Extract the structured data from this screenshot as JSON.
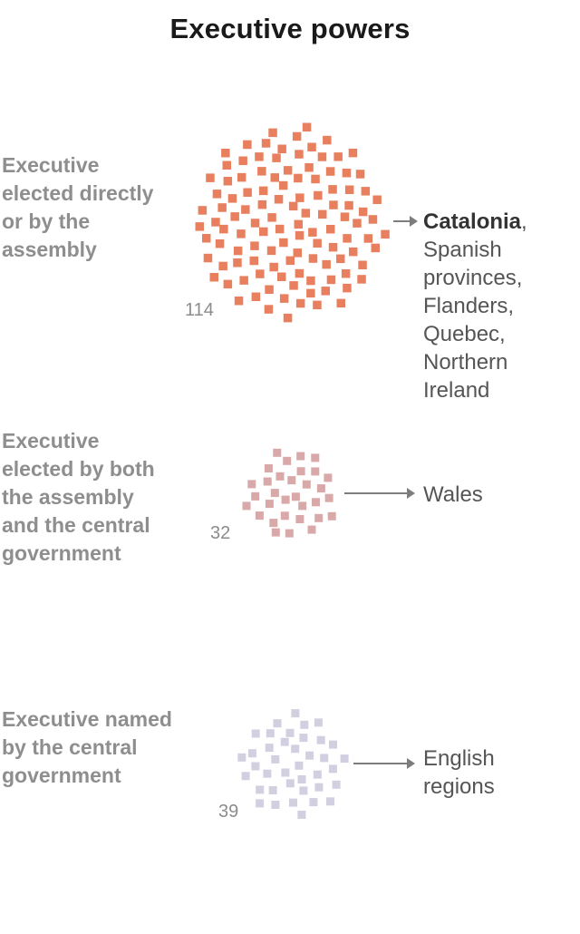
{
  "chart_data": {
    "type": "unit-chart",
    "title": "Executive powers",
    "groups": [
      {
        "id": "direct",
        "label": "Executive elected directly or by the assembly",
        "count": 114,
        "count_label": "114",
        "color": "#e8805f",
        "regions_highlight": "Catalonia",
        "regions_highlight_suffix": ",",
        "regions_rest": "Spanish provinces, Flanders, Quebec, Northern Ireland"
      },
      {
        "id": "both",
        "label": "Executive elected by both the assembly and the central government",
        "count": 32,
        "count_label": "32",
        "color": "#d9a8a8",
        "regions_highlight": "",
        "regions_highlight_suffix": "",
        "regions_rest": "Wales"
      },
      {
        "id": "central",
        "label": "Executive named by the central government",
        "count": 39,
        "count_label": "39",
        "color": "#d2cfe0",
        "regions_highlight": "",
        "regions_highlight_suffix": "",
        "regions_rest": "English regions"
      }
    ]
  }
}
